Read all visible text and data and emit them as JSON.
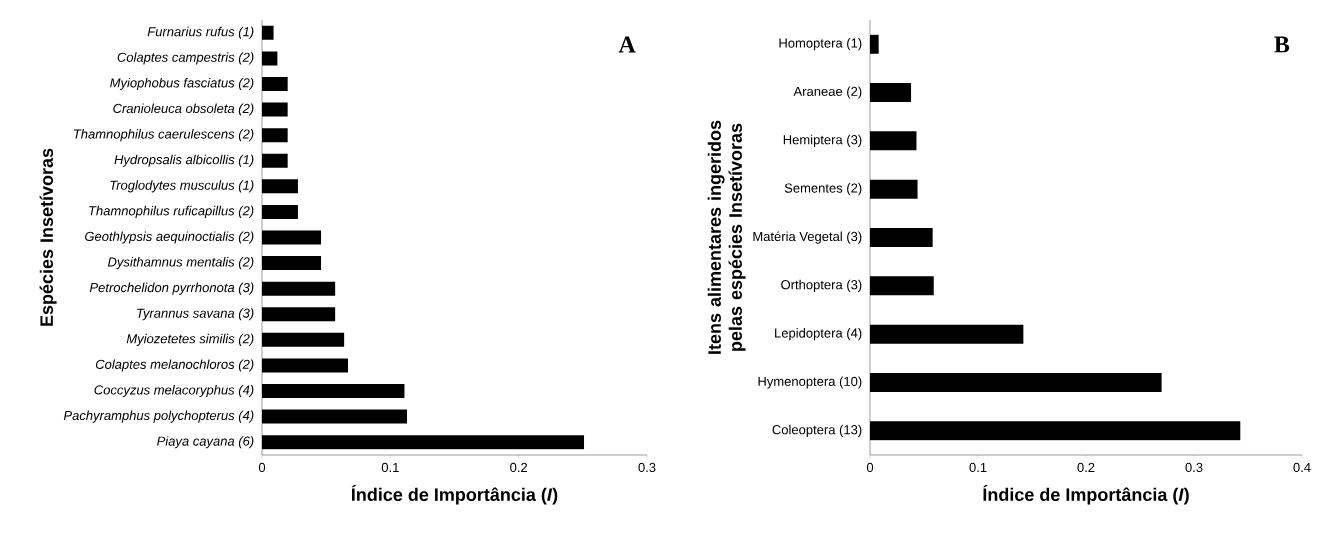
{
  "chart_data": [
    {
      "type": "bar",
      "orientation": "horizontal",
      "ylabel": "Espécies Insetívoras",
      "xlabel": "Índice de Importância (*I*)",
      "categories": [
        "Furnarius rufus (1)",
        "Colaptes campestris (2)",
        "Myiophobus fasciatus (2)",
        "Cranioleuca obsoleta (2)",
        "Thamnophilus caerulescens (2)",
        "Hydropsalis albicollis (1)",
        "Troglodytes musculus (1)",
        "Thamnophilus ruficapillus (2)",
        "Geothlypsis aequinoctialis (2)",
        "Dysithamnus mentalis (2)",
        "Petrochelidon pyrrhonota (3)",
        "Tyrannus savana (3)",
        "Myiozetetes similis (2)",
        "Colaptes melanochloros (2)",
        "Coccyzus melacoryphus  (4)",
        "Pachyramphus polychopterus (4)",
        "Piaya cayana  (6)"
      ],
      "values": [
        0.009,
        0.012,
        0.02,
        0.02,
        0.02,
        0.02,
        0.028,
        0.028,
        0.046,
        0.046,
        0.057,
        0.057,
        0.064,
        0.067,
        0.111,
        0.113,
        0.251
      ],
      "color": "#000000",
      "xlim": [
        0,
        0.3
      ],
      "xticks": [
        0,
        0.1,
        0.2,
        0.3
      ],
      "annotations": [
        "A"
      ]
    },
    {
      "type": "bar",
      "orientation": "horizontal",
      "ylabel": "Itens alimentares ingeridos pelas espécies Insetívoras",
      "xlabel": "Índice de Importância (*I*)",
      "categories": [
        "Homoptera (1)",
        "Araneae (2)",
        "Hemiptera (3)",
        "Sementes (2)",
        "Matéria Vegetal (3)",
        "Orthoptera (3)",
        "Lepidoptera (4)",
        "Hymenoptera (10)",
        "Coleoptera (13)"
      ],
      "values": [
        0.008,
        0.038,
        0.043,
        0.044,
        0.058,
        0.059,
        0.142,
        0.27,
        0.343
      ],
      "color": "#000000",
      "xlim": [
        0,
        0.4
      ],
      "xticks": [
        0,
        0.1,
        0.2,
        0.3,
        0.4
      ],
      "annotations": [
        "B"
      ]
    }
  ]
}
